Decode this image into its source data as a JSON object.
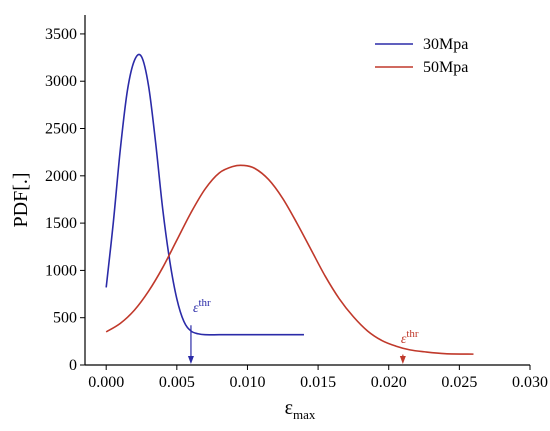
{
  "chart_data": {
    "type": "line",
    "xlabel": "ε",
    "xlabel_sub": "max",
    "ylabel": "PDF[.]",
    "xlim": [
      -0.0015,
      0.03
    ],
    "ylim": [
      0,
      3700
    ],
    "x_ticks": [
      0.0,
      0.005,
      0.01,
      0.015,
      0.02,
      0.025,
      0.03
    ],
    "x_tick_labels": [
      "0.000",
      "0.005",
      "0.010",
      "0.015",
      "0.020",
      "0.025",
      "0.030"
    ],
    "y_ticks": [
      0,
      500,
      1000,
      1500,
      2000,
      2500,
      3000,
      3500
    ],
    "y_tick_labels": [
      "0",
      "500",
      "1000",
      "1500",
      "2000",
      "2500",
      "3000",
      "3500"
    ],
    "grid": false,
    "legend_position": "top-right",
    "series": [
      {
        "name": "30Mpa",
        "color": "#2b2ba8",
        "x": [
          0.0,
          0.0005,
          0.001,
          0.0015,
          0.002,
          0.0025,
          0.003,
          0.0035,
          0.004,
          0.0045,
          0.005,
          0.0055,
          0.006,
          0.0065,
          0.007,
          0.008,
          0.009,
          0.01,
          0.011,
          0.012,
          0.013,
          0.014
        ],
        "y": [
          820,
          1500,
          2280,
          2900,
          3220,
          3260,
          2950,
          2350,
          1650,
          1100,
          700,
          460,
          360,
          330,
          320,
          320,
          320,
          320,
          320,
          320,
          320,
          320
        ]
      },
      {
        "name": "50Mpa",
        "color": "#c0392b",
        "x": [
          0.0,
          0.001,
          0.002,
          0.003,
          0.004,
          0.005,
          0.006,
          0.007,
          0.008,
          0.009,
          0.0097,
          0.0105,
          0.0115,
          0.0125,
          0.0135,
          0.0145,
          0.0155,
          0.0165,
          0.0175,
          0.0185,
          0.0195,
          0.0205,
          0.0215,
          0.0225,
          0.024,
          0.026
        ],
        "y": [
          350,
          440,
          580,
          780,
          1030,
          1320,
          1610,
          1860,
          2030,
          2100,
          2110,
          2080,
          1960,
          1760,
          1500,
          1220,
          940,
          700,
          510,
          360,
          260,
          200,
          160,
          140,
          120,
          115
        ]
      }
    ],
    "annotations": [
      {
        "label": "ε",
        "superscript": "thr",
        "color": "#2b2ba8",
        "x": 0.006
      },
      {
        "label": "ε",
        "superscript": "thr",
        "color": "#c0392b",
        "x": 0.021
      }
    ]
  }
}
